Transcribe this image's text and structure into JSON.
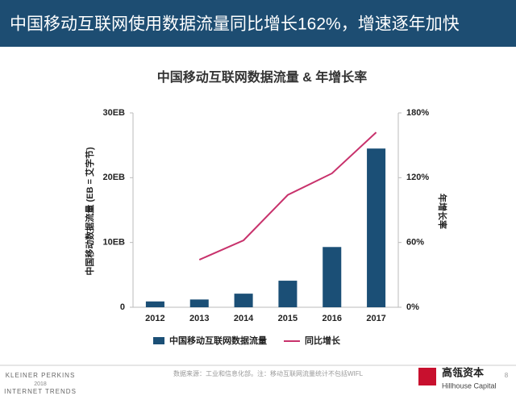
{
  "header": {
    "title": "中国移动互联网使用数据流量同比增长162%，增速逐年加快"
  },
  "chart_data": {
    "type": "bar_line",
    "title": "中国移动互联网数据流量 & 年增长率",
    "y_label": "中国移动数据流量 (EB = 艾字节)",
    "y2_label": "年增长率",
    "categories": [
      "2012",
      "2013",
      "2014",
      "2015",
      "2016",
      "2017"
    ],
    "series": [
      {
        "name": "中国移动互联网数据流量",
        "type": "bar",
        "color": "#1b4f76",
        "values": [
          0.9,
          1.2,
          2.1,
          4.1,
          9.3,
          24.5
        ]
      },
      {
        "name": "同比增长",
        "type": "line",
        "axis": "y2",
        "color": "#c8326c",
        "values": [
          null,
          44,
          62,
          104,
          124,
          162
        ]
      }
    ],
    "ylim": [
      0,
      30
    ],
    "yticks": [
      0,
      {
        "value": 10,
        "label": "10EB"
      },
      {
        "value": 20,
        "label": "20EB"
      },
      {
        "value": 30,
        "label": "30EB"
      }
    ],
    "y2lim": [
      0,
      180
    ],
    "y2ticks": [
      {
        "value": 0,
        "label": "0%"
      },
      {
        "value": 60,
        "label": "60%"
      },
      {
        "value": 120,
        "label": "120%"
      },
      {
        "value": 180,
        "label": "180%"
      }
    ],
    "grid": false,
    "legend": "bottom"
  },
  "footer": {
    "brand": "KLEINER PERKINS",
    "year": "2018",
    "report": "INTERNET TRENDS",
    "source": "数据来源：工业和信息化部。注：移动互联网流量统计不包括WIFL",
    "logo_cn": "高瓴资本",
    "logo_en": "Hillhouse Capital",
    "page": "8"
  }
}
